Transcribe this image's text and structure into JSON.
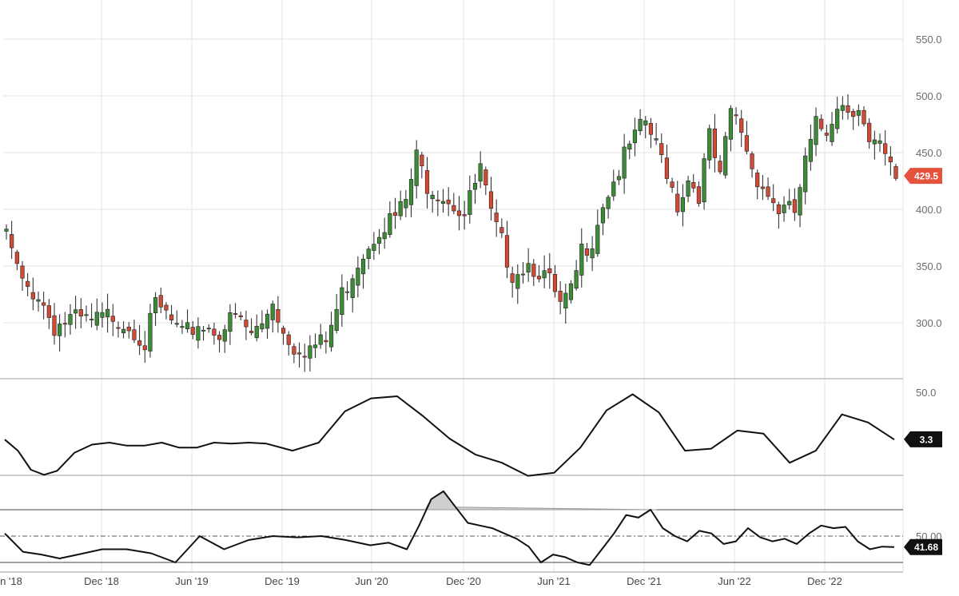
{
  "chart_data": [
    {
      "type": "candlestick",
      "panel": "price",
      "ylim": [
        265,
        575
      ],
      "y_ticks": [
        "300.0",
        "350.0",
        "400.0",
        "450.0",
        "500.0",
        "550.0"
      ],
      "last_value_label": "429.5",
      "colors": {
        "up": "#3d8b37",
        "down": "#d04a36",
        "wick": "#222222",
        "badge": "#e5533d"
      },
      "anchors": [
        [
          0,
          382
        ],
        [
          3,
          338
        ],
        [
          6,
          330
        ],
        [
          9,
          302
        ],
        [
          12,
          308
        ],
        [
          16,
          305
        ],
        [
          20,
          312
        ],
        [
          24,
          300
        ],
        [
          26,
          287
        ],
        [
          28,
          320
        ],
        [
          30,
          312
        ],
        [
          33,
          292
        ],
        [
          36,
          304
        ],
        [
          40,
          298
        ],
        [
          43,
          310
        ],
        [
          46,
          295
        ],
        [
          48,
          303
        ],
        [
          50,
          326
        ],
        [
          52,
          297
        ],
        [
          54,
          285
        ],
        [
          57,
          283
        ],
        [
          60,
          288
        ],
        [
          63,
          330
        ],
        [
          66,
          360
        ],
        [
          70,
          390
        ],
        [
          73,
          398
        ],
        [
          75,
          412
        ],
        [
          77,
          450
        ],
        [
          79,
          428
        ],
        [
          83,
          415
        ],
        [
          86,
          400
        ],
        [
          89,
          440
        ],
        [
          91,
          398
        ],
        [
          93,
          375
        ],
        [
          95,
          350
        ],
        [
          98,
          358
        ],
        [
          100,
          352
        ],
        [
          102,
          340
        ],
        [
          104,
          318
        ],
        [
          106,
          330
        ],
        [
          108,
          368
        ],
        [
          110,
          380
        ],
        [
          112,
          412
        ],
        [
          114,
          430
        ],
        [
          117,
          460
        ],
        [
          120,
          482
        ],
        [
          122,
          460
        ],
        [
          124,
          440
        ],
        [
          126,
          410
        ],
        [
          128,
          432
        ],
        [
          130,
          420
        ],
        [
          132,
          468
        ],
        [
          134,
          430
        ],
        [
          136,
          492
        ],
        [
          138,
          475
        ],
        [
          140,
          442
        ],
        [
          143,
          418
        ],
        [
          145,
          405
        ],
        [
          148,
          402
        ],
        [
          150,
          445
        ],
        [
          152,
          478
        ],
        [
          154,
          475
        ],
        [
          156,
          500
        ],
        [
          158,
          495
        ],
        [
          160,
          497
        ],
        [
          162,
          460
        ],
        [
          164,
          458
        ],
        [
          166,
          440
        ],
        [
          167,
          432
        ]
      ]
    },
    {
      "type": "line",
      "panel": "oscillator",
      "y_ticks": [
        "50.0"
      ],
      "last_value_label": "3.3",
      "points": [
        [
          0,
          3
        ],
        [
          3,
          -8
        ],
        [
          6,
          -27
        ],
        [
          9,
          -32
        ],
        [
          12,
          -28
        ],
        [
          16,
          -10
        ],
        [
          20,
          -2
        ],
        [
          24,
          0
        ],
        [
          28,
          -3
        ],
        [
          32,
          -3
        ],
        [
          36,
          0
        ],
        [
          40,
          -5
        ],
        [
          44,
          -5
        ],
        [
          48,
          0
        ],
        [
          52,
          -1
        ],
        [
          56,
          0
        ],
        [
          60,
          -1
        ],
        [
          66,
          -8
        ],
        [
          72,
          0
        ],
        [
          78,
          31
        ],
        [
          84,
          44
        ],
        [
          90,
          46
        ],
        [
          96,
          26
        ],
        [
          102,
          4
        ],
        [
          108,
          -12
        ],
        [
          114,
          -20
        ],
        [
          120,
          -33
        ],
        [
          126,
          -30
        ],
        [
          132,
          -5
        ],
        [
          138,
          32
        ],
        [
          144,
          48
        ],
        [
          150,
          30
        ],
        [
          156,
          -8
        ],
        [
          162,
          -6
        ],
        [
          168,
          12
        ],
        [
          174,
          9
        ],
        [
          180,
          -20
        ],
        [
          186,
          -8
        ],
        [
          192,
          28
        ],
        [
          198,
          20
        ],
        [
          204,
          3
        ]
      ]
    },
    {
      "type": "area",
      "panel": "rsi",
      "y_ticks": [
        "50.00"
      ],
      "last_value_label": "41.68",
      "levels": [
        70,
        50,
        30
      ],
      "points": [
        [
          0,
          52
        ],
        [
          3,
          38
        ],
        [
          6,
          36
        ],
        [
          9,
          33
        ],
        [
          12,
          36
        ],
        [
          16,
          40
        ],
        [
          20,
          40
        ],
        [
          24,
          37
        ],
        [
          28,
          30
        ],
        [
          32,
          50
        ],
        [
          36,
          40
        ],
        [
          40,
          47
        ],
        [
          44,
          50
        ],
        [
          48,
          49
        ],
        [
          52,
          50
        ],
        [
          56,
          47
        ],
        [
          60,
          43
        ],
        [
          63,
          45
        ],
        [
          66,
          40
        ],
        [
          68,
          58
        ],
        [
          70,
          78
        ],
        [
          72,
          84
        ],
        [
          74,
          72
        ],
        [
          76,
          60
        ],
        [
          78,
          58
        ],
        [
          80,
          56
        ],
        [
          82,
          52
        ],
        [
          84,
          48
        ],
        [
          86,
          42
        ],
        [
          88,
          30
        ],
        [
          90,
          36
        ],
        [
          92,
          34
        ],
        [
          94,
          30
        ],
        [
          96,
          28
        ],
        [
          98,
          40
        ],
        [
          100,
          52
        ],
        [
          102,
          66
        ],
        [
          104,
          64
        ],
        [
          106,
          70
        ],
        [
          108,
          56
        ],
        [
          110,
          50
        ],
        [
          112,
          46
        ],
        [
          114,
          54
        ],
        [
          116,
          52
        ],
        [
          118,
          44
        ],
        [
          120,
          46
        ],
        [
          122,
          56
        ],
        [
          124,
          49
        ],
        [
          126,
          46
        ],
        [
          128,
          48
        ],
        [
          130,
          44
        ],
        [
          132,
          52
        ],
        [
          134,
          58
        ],
        [
          136,
          56
        ],
        [
          138,
          57
        ],
        [
          140,
          46
        ],
        [
          142,
          40
        ],
        [
          144,
          42
        ],
        [
          146,
          41.68
        ]
      ]
    }
  ],
  "x_axis": {
    "labels": [
      "n '18",
      "Dec '18",
      "Jun '19",
      "Dec '19",
      "Jun '20",
      "Dec '20",
      "Jun '21",
      "Dec '21",
      "Jun '22",
      "Dec '22"
    ]
  }
}
